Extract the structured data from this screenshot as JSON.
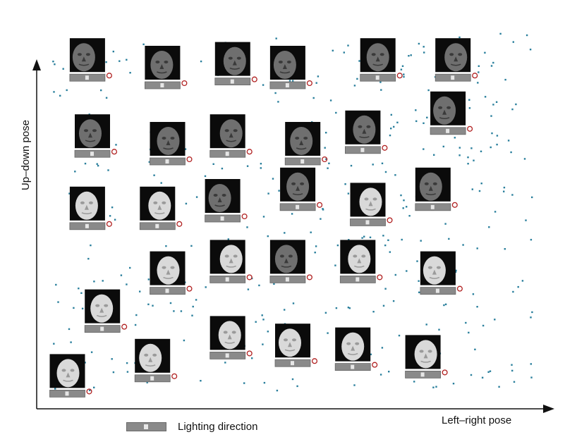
{
  "chart_data": {
    "type": "scatter",
    "xlabel": "Left–right pose",
    "ylabel": "Up–down pose",
    "legend": {
      "label": "Lighting direction",
      "placement": "bottom-left"
    },
    "colors": {
      "points": "#2a7f9c",
      "axis": "#111111",
      "marker": "#b02020",
      "slider": "#8a8a8a"
    },
    "grid": false,
    "xlim": [
      0,
      100
    ],
    "ylim": [
      0,
      100
    ],
    "faces": [
      {
        "x": 9,
        "y": 92,
        "tone": "dark",
        "light": 0.5
      },
      {
        "x": 24,
        "y": 90,
        "tone": "dark",
        "light": 0.5
      },
      {
        "x": 38,
        "y": 91,
        "tone": "dark",
        "light": 0.5
      },
      {
        "x": 49,
        "y": 90,
        "tone": "dark",
        "light": 0.5
      },
      {
        "x": 67,
        "y": 92,
        "tone": "dark",
        "light": 0.5
      },
      {
        "x": 82,
        "y": 92,
        "tone": "dark",
        "light": 0.5
      },
      {
        "x": 10,
        "y": 72,
        "tone": "dark",
        "light": 0.5
      },
      {
        "x": 25,
        "y": 70,
        "tone": "dark",
        "light": 0.5
      },
      {
        "x": 37,
        "y": 72,
        "tone": "dark",
        "light": 0.5
      },
      {
        "x": 52,
        "y": 70,
        "tone": "dark",
        "light": 0.5
      },
      {
        "x": 64,
        "y": 73,
        "tone": "dark",
        "light": 0.5
      },
      {
        "x": 81,
        "y": 78,
        "tone": "dark",
        "light": 0.5
      },
      {
        "x": 9,
        "y": 53,
        "tone": "light",
        "light": 0.5
      },
      {
        "x": 23,
        "y": 53,
        "tone": "light",
        "light": 0.5
      },
      {
        "x": 36,
        "y": 55,
        "tone": "dark",
        "light": 0.5
      },
      {
        "x": 51,
        "y": 58,
        "tone": "dark",
        "light": 0.5
      },
      {
        "x": 65,
        "y": 54,
        "tone": "light",
        "light": 0.5
      },
      {
        "x": 78,
        "y": 58,
        "tone": "dark",
        "light": 0.5
      },
      {
        "x": 25,
        "y": 36,
        "tone": "light",
        "light": 0.5
      },
      {
        "x": 37,
        "y": 39,
        "tone": "light",
        "light": 0.5
      },
      {
        "x": 49,
        "y": 39,
        "tone": "dark",
        "light": 0.5
      },
      {
        "x": 63,
        "y": 39,
        "tone": "light",
        "light": 0.5
      },
      {
        "x": 79,
        "y": 36,
        "tone": "light",
        "light": 0.5
      },
      {
        "x": 12,
        "y": 26,
        "tone": "light",
        "light": 0.5
      },
      {
        "x": 37,
        "y": 19,
        "tone": "light",
        "light": 0.5
      },
      {
        "x": 50,
        "y": 17,
        "tone": "light",
        "light": 0.5
      },
      {
        "x": 62,
        "y": 16,
        "tone": "light",
        "light": 0.5
      },
      {
        "x": 76,
        "y": 14,
        "tone": "light",
        "light": 0.5
      },
      {
        "x": 22,
        "y": 13,
        "tone": "light",
        "light": 0.5
      },
      {
        "x": 5,
        "y": 9,
        "tone": "light",
        "light": 0.5
      }
    ],
    "point_count": 380,
    "point_seed": 7
  }
}
